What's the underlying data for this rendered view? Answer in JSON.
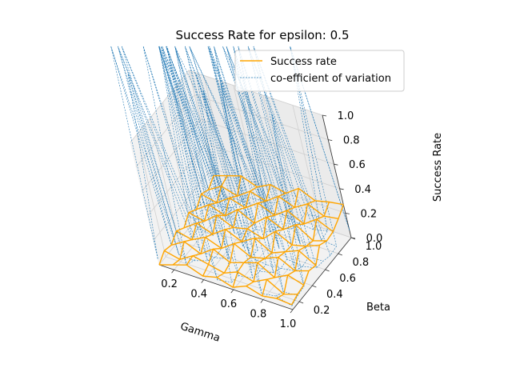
{
  "chart_data": {
    "type": "3d-wireframe",
    "title": "Success Rate for epsilon: 0.5",
    "xlabel": "Gamma",
    "ylabel": "Beta",
    "zlabel": "Success Rate",
    "xlim": [
      0.1,
      1.0
    ],
    "ylim": [
      0.1,
      1.0
    ],
    "zlim": [
      0.0,
      1.0
    ],
    "x_ticks": [
      "0.2",
      "0.4",
      "0.6",
      "0.8",
      "1.0"
    ],
    "y_ticks": [
      "0.2",
      "0.4",
      "0.6",
      "0.8",
      "1.0"
    ],
    "z_ticks": [
      "0.0",
      "0.2",
      "0.4",
      "0.6",
      "0.8",
      "1.0"
    ],
    "grid": true,
    "legend": {
      "placement": "upper-right",
      "entries": [
        {
          "label": "Success rate",
          "color": "#ffa500",
          "style": "solid"
        },
        {
          "label": "co-efficient of variation",
          "color": "#1f77b4",
          "style": "dashed"
        }
      ]
    },
    "grid_x": [
      0.1,
      0.2,
      0.3,
      0.4,
      0.5,
      0.6,
      0.7,
      0.8,
      0.9,
      1.0
    ],
    "grid_y": [
      0.1,
      0.2,
      0.3,
      0.4,
      0.5,
      0.6,
      0.7,
      0.8,
      0.9,
      1.0
    ],
    "series": [
      {
        "name": "Success rate",
        "note_rows": "rows indexed by beta (grid_y), columns by gamma (grid_x)",
        "z": [
          [
            0.0,
            0.04,
            0.08,
            0.03,
            0.06,
            0.02,
            0.07,
            0.03,
            0.05,
            0.04
          ],
          [
            0.05,
            0.02,
            0.09,
            0.06,
            0.03,
            0.08,
            0.04,
            0.1,
            0.02,
            0.06
          ],
          [
            0.03,
            0.1,
            0.04,
            0.12,
            0.05,
            0.09,
            0.13,
            0.05,
            0.11,
            0.07
          ],
          [
            0.08,
            0.05,
            0.11,
            0.06,
            0.14,
            0.07,
            0.1,
            0.15,
            0.08,
            0.12
          ],
          [
            0.04,
            0.12,
            0.07,
            0.15,
            0.09,
            0.16,
            0.08,
            0.13,
            0.18,
            0.1
          ],
          [
            0.1,
            0.07,
            0.16,
            0.1,
            0.13,
            0.09,
            0.19,
            0.12,
            0.15,
            0.2
          ],
          [
            0.06,
            0.14,
            0.09,
            0.18,
            0.11,
            0.2,
            0.14,
            0.22,
            0.13,
            0.17
          ],
          [
            0.12,
            0.09,
            0.17,
            0.13,
            0.21,
            0.15,
            0.23,
            0.16,
            0.24,
            0.18
          ],
          [
            0.09,
            0.16,
            0.12,
            0.2,
            0.16,
            0.24,
            0.19,
            0.26,
            0.2,
            0.22
          ],
          [
            0.14,
            0.18,
            0.22,
            0.17,
            0.23,
            0.2,
            0.28,
            0.22,
            0.25,
            0.27
          ]
        ]
      },
      {
        "name": "co-efficient of variation",
        "note_rows": "rows indexed by beta (grid_y), columns by gamma (grid_x); values above 1.0 are clipped at the top of the plot",
        "z": [
          [
            0.05,
            1.6,
            0.08,
            2.1,
            0.04,
            0.06,
            1.8,
            0.05,
            0.07,
            0.03
          ],
          [
            1.9,
            0.06,
            0.05,
            0.09,
            2.3,
            0.05,
            0.07,
            1.7,
            0.04,
            0.05
          ],
          [
            0.04,
            2.4,
            0.07,
            0.05,
            0.08,
            1.5,
            0.06,
            0.09,
            2.0,
            0.06
          ],
          [
            0.07,
            0.05,
            1.7,
            0.06,
            2.5,
            0.07,
            0.05,
            0.06,
            0.08,
            1.4
          ],
          [
            2.2,
            0.08,
            0.06,
            1.9,
            0.05,
            0.06,
            2.3,
            0.07,
            0.05,
            0.08
          ],
          [
            0.06,
            0.07,
            2.1,
            0.05,
            0.09,
            1.8,
            0.05,
            2.4,
            0.06,
            0.07
          ],
          [
            0.08,
            1.6,
            0.05,
            2.0,
            0.06,
            0.08,
            1.7,
            0.06,
            2.2,
            0.05
          ],
          [
            0.05,
            0.06,
            0.09,
            0.07,
            1.9,
            0.05,
            0.08,
            2.1,
            0.07,
            0.06
          ],
          [
            1.7,
            0.08,
            0.06,
            2.3,
            0.07,
            0.09,
            0.06,
            0.05,
            0.08,
            1.9
          ],
          [
            0.07,
            2.0,
            0.05,
            0.06,
            0.08,
            2.4,
            0.07,
            0.09,
            1.6,
            0.06
          ]
        ]
      }
    ]
  }
}
